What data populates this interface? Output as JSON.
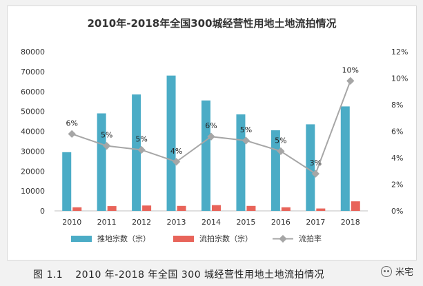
{
  "chart_data": {
    "type": "bar",
    "title": "2010年-2018年全国300城经营性用地土地流拍情况",
    "categories": [
      "2010",
      "2011",
      "2012",
      "2013",
      "2014",
      "2015",
      "2016",
      "2017",
      "2018"
    ],
    "series": [
      {
        "name": "推地宗数（宗）",
        "type": "bar",
        "axis": "left",
        "color": "#4bacc6",
        "values": [
          29500,
          49000,
          58500,
          68000,
          55500,
          48500,
          40500,
          43500,
          52500
        ]
      },
      {
        "name": "流拍宗数（宗）",
        "type": "bar",
        "axis": "left",
        "color": "#e8645a",
        "values": [
          1800,
          2400,
          2700,
          2500,
          2900,
          2500,
          1800,
          1200,
          4800
        ]
      },
      {
        "name": "流拍率",
        "type": "line",
        "axis": "right",
        "color": "#a6a6a6",
        "values": [
          5.8,
          4.9,
          4.6,
          3.7,
          5.6,
          5.3,
          4.5,
          2.8,
          9.8
        ],
        "labels": [
          "6%",
          "5%",
          "5%",
          "4%",
          "6%",
          "5%",
          "5%",
          "3%",
          "10%"
        ]
      }
    ],
    "y_left": {
      "ylim": [
        0,
        80000
      ],
      "ticks": [
        "0",
        "10000",
        "20000",
        "30000",
        "40000",
        "50000",
        "60000",
        "70000",
        "80000"
      ]
    },
    "y_right": {
      "ylim": [
        0,
        12
      ],
      "ticks": [
        "0%",
        "2%",
        "4%",
        "6%",
        "8%",
        "10%",
        "12%"
      ]
    },
    "grid": false,
    "legend_position": "bottom"
  },
  "caption": {
    "figure_number": "图 1.1",
    "text": "2010 年-2018 年全国 300 城经营性用地土地流拍情况"
  },
  "watermark": {
    "text": "米宅",
    "icon": "wechat-icon"
  }
}
